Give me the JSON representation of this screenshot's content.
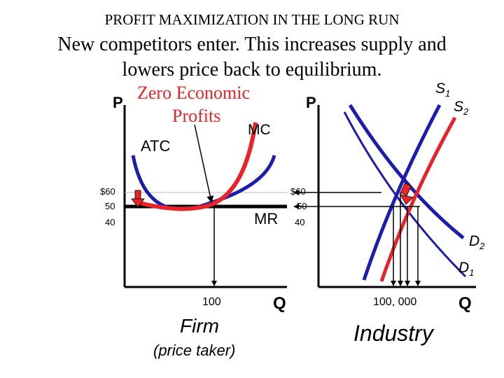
{
  "title": "PROFIT MAXIMIZATION IN THE LONG RUN",
  "subtitle_line1": "New competitors enter. This increases supply and",
  "subtitle_line2": "lowers price back to equilibrium.",
  "firm": {
    "y_axis_label": "P",
    "x_axis_label": "Q",
    "annotation_line1": "Zero Economic",
    "annotation_line2": "Profits",
    "mc_label": "MC",
    "atc_label": "ATC",
    "mr_label": "MR",
    "price_ticks": [
      "$60",
      "50",
      "40"
    ],
    "quantity_tick": "100",
    "caption": "Firm",
    "caption_sub": "(price taker)"
  },
  "industry": {
    "y_axis_label": "P",
    "x_axis_label": "Q",
    "price_ticks": [
      "$60",
      "50",
      "40"
    ],
    "quantity_tick": "100, 000",
    "caption": "Industry",
    "s1_main": "S",
    "s1_sub": "1",
    "s2_main": "S",
    "s2_sub": "2",
    "d2_main": "D",
    "d2_sub": "2",
    "d1_main": "D",
    "d1_sub": "1"
  },
  "colors": {
    "red_curve": "#e8232a",
    "blue_curve": "#1d1dad",
    "axis": "#000000"
  }
}
